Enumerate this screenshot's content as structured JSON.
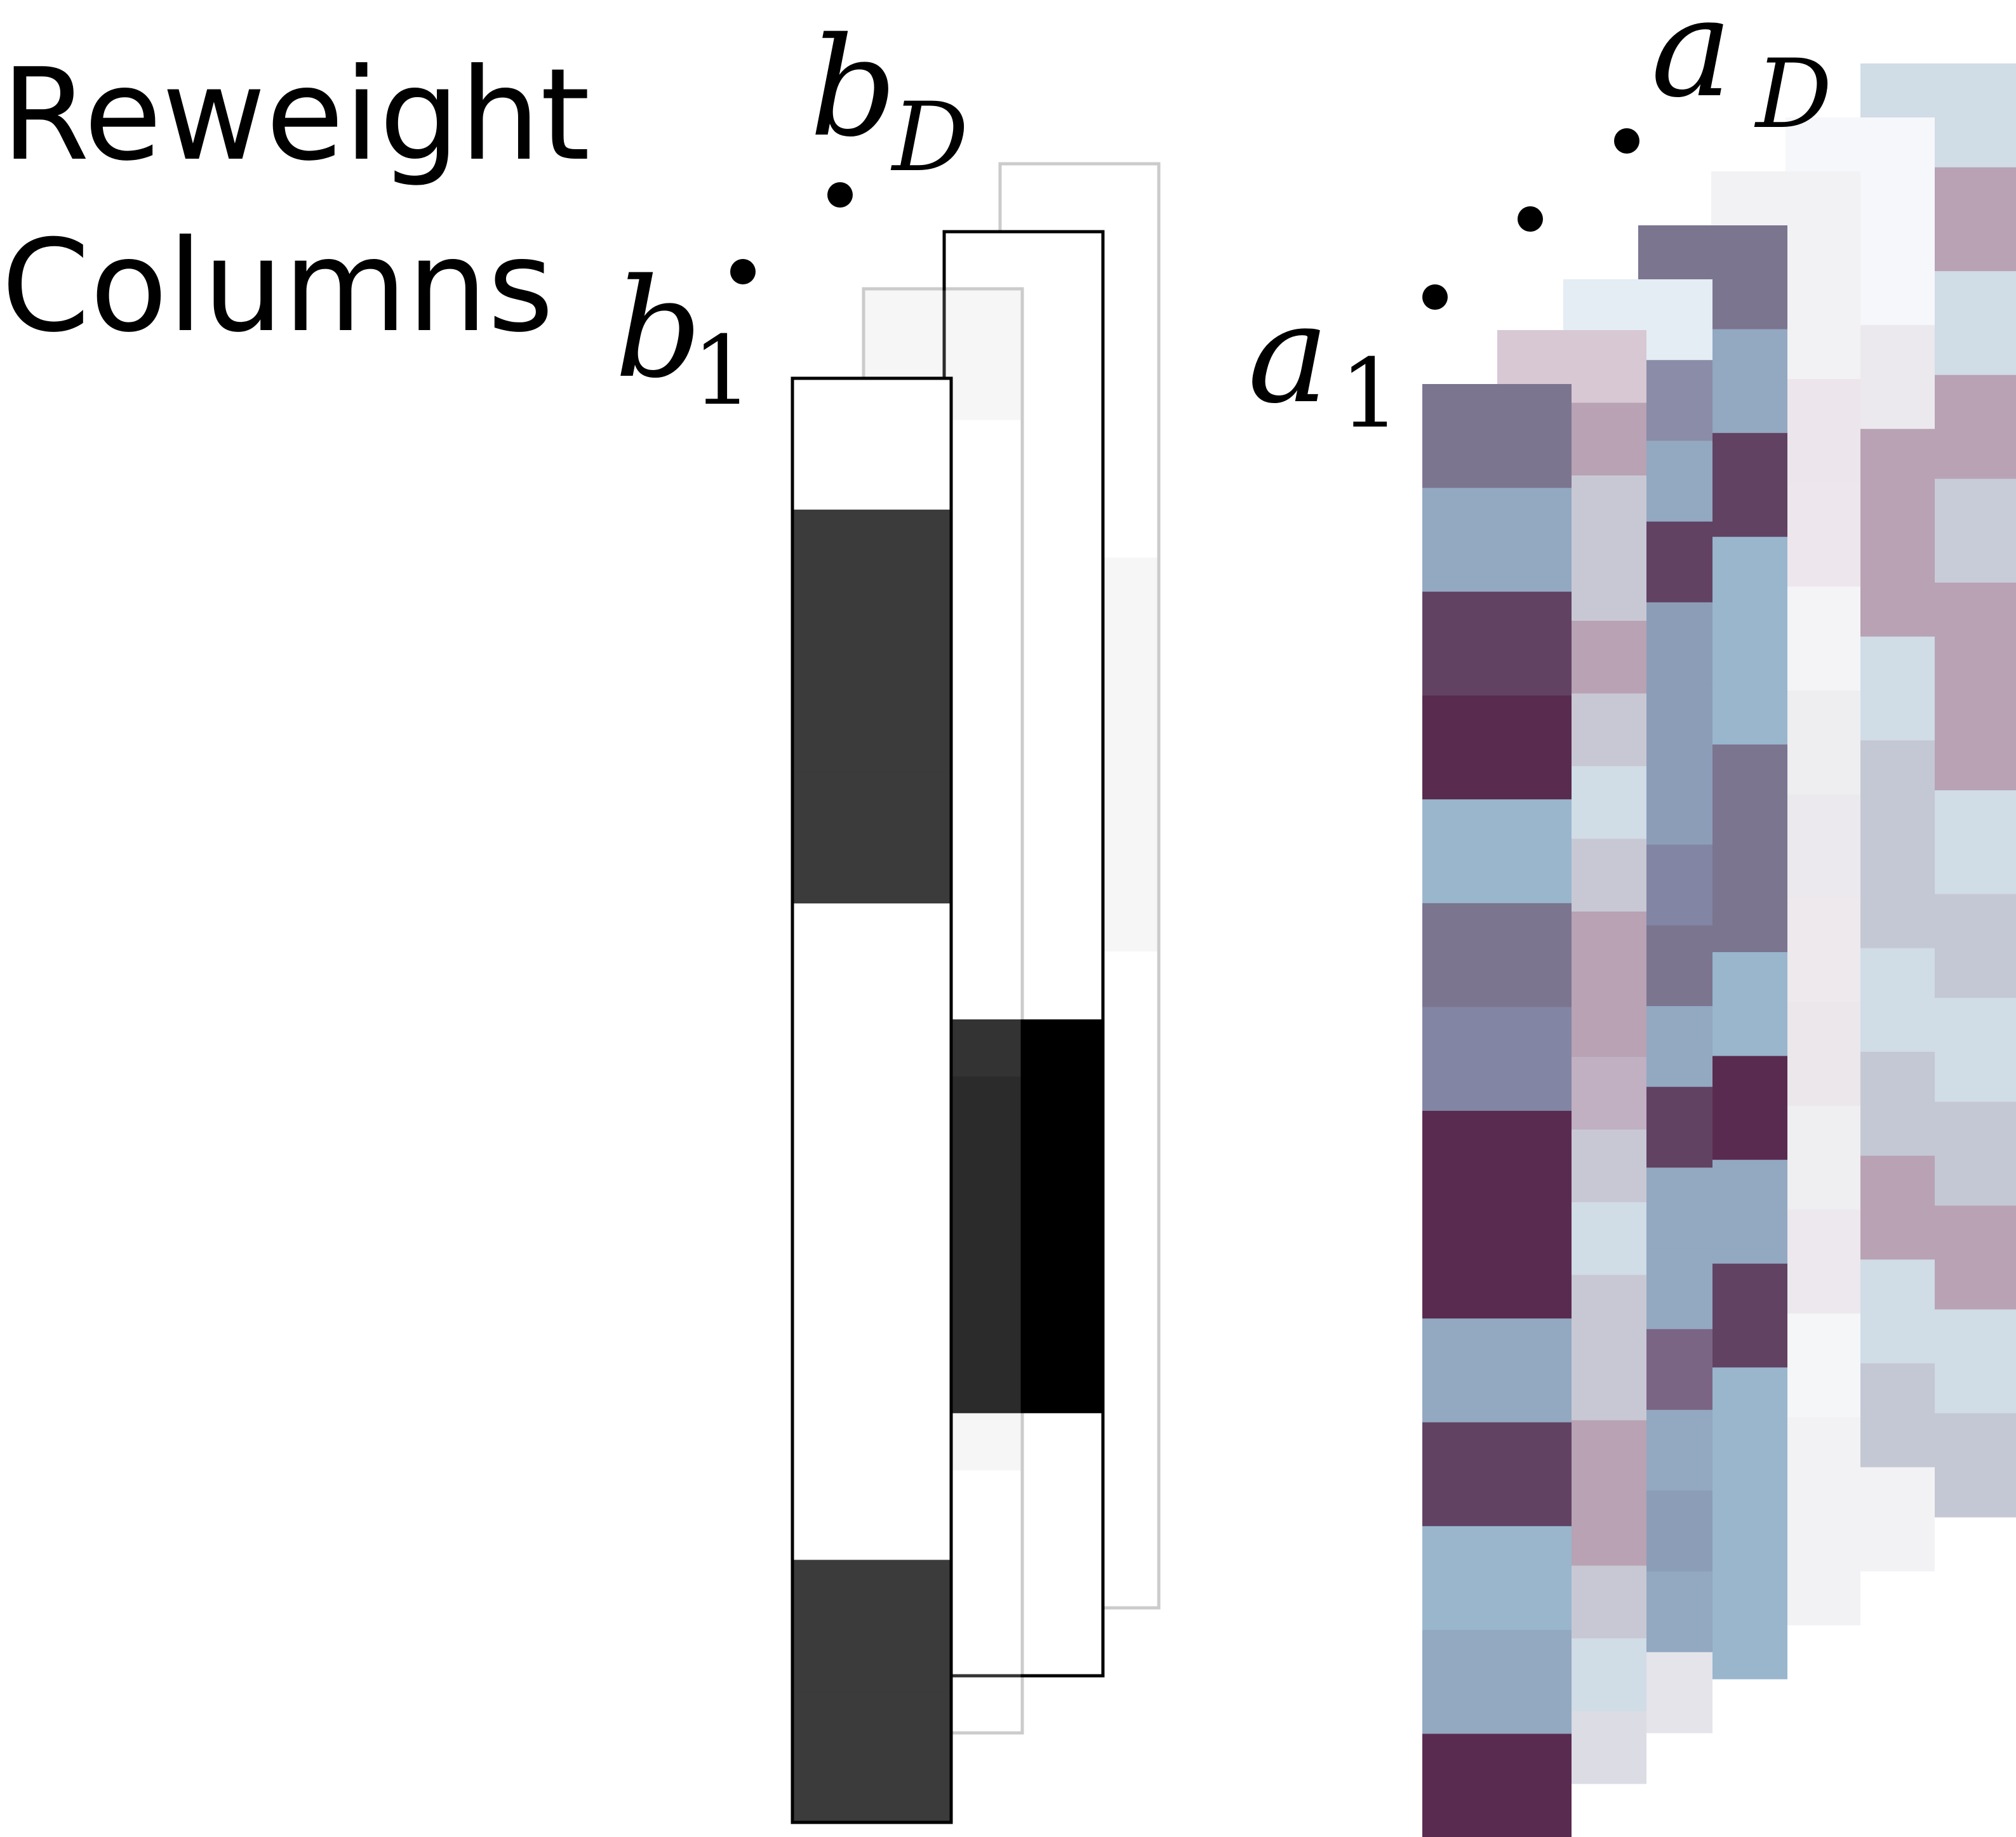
{
  "title": {
    "line1": "Reweight",
    "line2": "Columns"
  },
  "labels": {
    "b_first": {
      "base": "b",
      "sub": "1"
    },
    "b_last": {
      "base": "b",
      "sub": "D"
    },
    "a_first": {
      "base": "a",
      "sub": "1"
    },
    "a_last": {
      "base": "a",
      "sub": "D"
    }
  },
  "weight_columns": {
    "b1": [
      "#ffffff",
      "#3b3b3b",
      "#3b3b3b",
      "#3b3b3b",
      "#ffffff",
      "#ffffff",
      "#ffffff",
      "#ffffff",
      "#ffffff",
      "#3b3b3b",
      "#3b3b3b"
    ],
    "b2": [
      "#d6d6d6",
      "#ffffff",
      "#ffffff",
      "#ffffff",
      "#ffffff",
      "#ffffff",
      "#d6d6d6",
      "#d6d6d6",
      "#d6d6d6",
      "#ffffff",
      "#ffffff"
    ],
    "b3": [
      "#ffffff",
      "#ffffff",
      "#ffffff",
      "#ffffff",
      "#ffffff",
      "#ffffff",
      "#000000",
      "#000000",
      "#000000",
      "#ffffff",
      "#ffffff"
    ],
    "b4": [
      "#ffffff",
      "#ffffff",
      "#ffffff",
      "#d6d6d6",
      "#d6d6d6",
      "#d6d6d6",
      "#ffffff",
      "#ffffff",
      "#ffffff",
      "#ffffff",
      "#ffffff"
    ]
  },
  "matrix_columns": {
    "a1": [
      "#7b7590",
      "#93a8c1",
      "#614263",
      "#582b4f",
      "#99b6cd",
      "#7b7590",
      "#8285a3",
      "#5a2b50",
      "#5a2b50",
      "#93a8c1",
      "#614263",
      "#99b6cd",
      "#93a8c1",
      "#5a2b50"
    ],
    "a2": [
      "#d8c8d4",
      "#b8a2b4",
      "#c8c8d4",
      "#c8c8d4",
      "#b8a2b4",
      "#c8c8d4",
      "#d0dce6",
      "#c8c8d4",
      "#b8a2b4",
      "#b8a2b4",
      "#c0b0c2",
      "#c8c8d4",
      "#d0dce6",
      "#c8c8d4",
      "#c8c8d4",
      "#b8a2b4",
      "#b8a2b4",
      "#c8c8d4",
      "#d0dce6",
      "#dcdce4"
    ],
    "a3": [
      "#e4ecf4",
      "#8b8ca7",
      "#93a8c1",
      "#614263",
      "#8c9db8",
      "#8c9db8",
      "#8c9db8",
      "#8285a3",
      "#7b7590",
      "#93a8c1",
      "#614263",
      "#93a8c1",
      "#93a8c1",
      "#7b6585",
      "#93a8c1",
      "#8c9db8",
      "#93a8c1",
      "#e4e4ea"
    ],
    "a4": [
      "#7b7590",
      "#93a8c1",
      "#614263",
      "#99b6cd",
      "#99b6cd",
      "#7b7590",
      "#7b7590",
      "#99b6cd",
      "#5a2b50",
      "#93a8c1",
      "#614263",
      "#99b6cd",
      "#99b6cd",
      "#99b6cd"
    ],
    "a5": [
      "#f2f2f4",
      "#f2f2f4",
      "#ece6ec",
      "#ede7ed",
      "#f4f4f6",
      "#eeeef0",
      "#ebe9ed",
      "#ede9ed",
      "#ebe7eb",
      "#efeef1",
      "#ede8ed",
      "#f4f6f8",
      "#f2f2f4",
      "#f2f2f4"
    ],
    "a6": [
      "#f6f7fa",
      "#f6f7fa",
      "#ebe9ed",
      "#b8a2b4",
      "#b8a2b4",
      "#d0dce6",
      "#c4c8d4",
      "#c4c8d4",
      "#d0dce6",
      "#c4c8d4",
      "#b8a2b4",
      "#d0dce6",
      "#c4c8d4",
      "#f2f2f4"
    ],
    "a7": [
      "#d0dce6",
      "#b8a2b4",
      "#d0dce6",
      "#b8a2b4",
      "#c8ccd8",
      "#b8a2b4",
      "#b8a2b4",
      "#d0dce6",
      "#c4c8d4",
      "#d0dce6",
      "#c4c8d4",
      "#b8a2b4",
      "#d0dce6",
      "#c4c8d4"
    ]
  }
}
